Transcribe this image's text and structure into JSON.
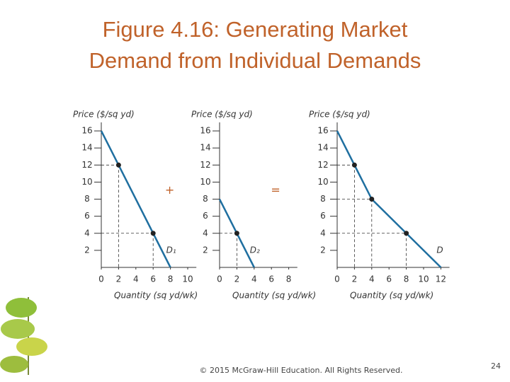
{
  "title": [
    "Figure 4.16: Generating Market",
    "Demand from Individual Demands"
  ],
  "footer": "© 2015 McGraw-Hill Education. All Rights Reserved.",
  "page_number": "24",
  "chart_data": [
    {
      "type": "line",
      "ylabel": "Price ($/sq yd)",
      "xlabel": "Quantity (sq yd/wk)",
      "annotation": "+",
      "xlim": [
        0,
        11
      ],
      "ylim": [
        0,
        17
      ],
      "xticks": [
        0,
        2,
        4,
        6,
        8,
        10
      ],
      "yticks": [
        2,
        4,
        6,
        8,
        10,
        12,
        14,
        16
      ],
      "series": [
        {
          "name": "D₁",
          "color": "#1f6fa0",
          "x": [
            0,
            8
          ],
          "values": [
            16,
            0
          ]
        }
      ],
      "points": {
        "x": [
          2,
          6
        ],
        "values": [
          12,
          4
        ]
      }
    },
    {
      "type": "line",
      "ylabel": "Price ($/sq yd)",
      "xlabel": "Quantity (sq yd/wk)",
      "annotation": "=",
      "xlim": [
        0,
        9
      ],
      "ylim": [
        0,
        17
      ],
      "xticks": [
        0,
        2,
        4,
        6,
        8
      ],
      "yticks": [
        2,
        4,
        6,
        8,
        10,
        12,
        14,
        16
      ],
      "series": [
        {
          "name": "D₂",
          "color": "#1f6fa0",
          "x": [
            0,
            4
          ],
          "values": [
            8,
            0
          ]
        }
      ],
      "points": {
        "x": [
          2
        ],
        "values": [
          4
        ]
      }
    },
    {
      "type": "line",
      "ylabel": "Price ($/sq yd)",
      "xlabel": "Quantity (sq yd/wk)",
      "xlim": [
        0,
        13
      ],
      "ylim": [
        0,
        17
      ],
      "xticks": [
        0,
        2,
        4,
        6,
        8,
        10,
        12
      ],
      "yticks": [
        2,
        4,
        6,
        8,
        10,
        12,
        14,
        16
      ],
      "series": [
        {
          "name": "D",
          "color": "#1f6fa0",
          "x": [
            0,
            4,
            12
          ],
          "values": [
            16,
            8,
            0
          ]
        }
      ],
      "points": {
        "x": [
          2,
          4,
          8
        ],
        "values": [
          12,
          8,
          4
        ]
      }
    }
  ]
}
